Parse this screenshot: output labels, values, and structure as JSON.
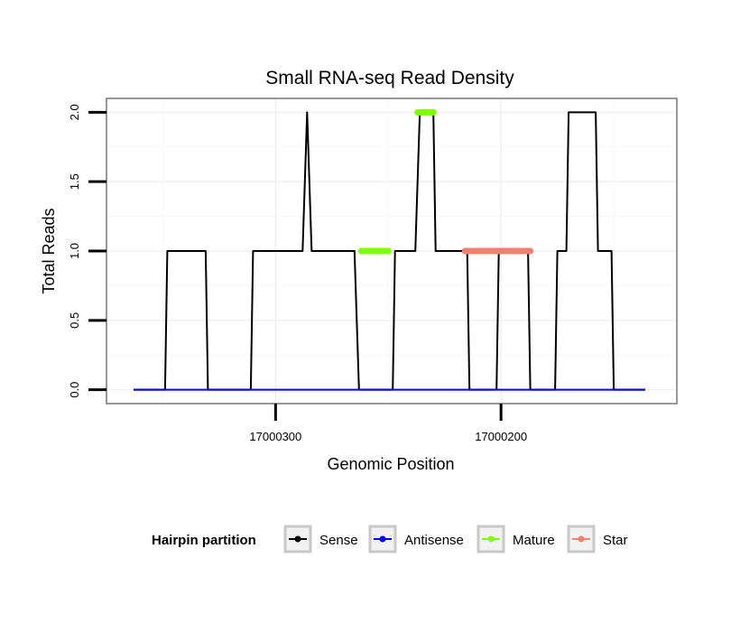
{
  "chart_data": {
    "type": "line",
    "title": "Small RNA-seq Read Density",
    "xlabel": "Genomic Position",
    "ylabel": "Total Reads",
    "xlim": [
      17000375,
      17000122
    ],
    "ylim": [
      -0.1,
      2.1
    ],
    "x_reversed": true,
    "grid": true,
    "x_ticks": [
      {
        "value": 17000300,
        "label": "17000300"
      },
      {
        "value": 17000200,
        "label": "17000200"
      }
    ],
    "y_ticks": [
      {
        "value": 0.0,
        "label": "0.0"
      },
      {
        "value": 0.5,
        "label": "0.5"
      },
      {
        "value": 1.0,
        "label": "1.0"
      },
      {
        "value": 1.5,
        "label": "1.5"
      },
      {
        "value": 2.0,
        "label": "2.0"
      }
    ],
    "series": [
      {
        "name": "Sense",
        "color": "#000000",
        "x": [
          17000363,
          17000349,
          17000348,
          17000331,
          17000330,
          17000311,
          17000310,
          17000288,
          17000287,
          17000286,
          17000285,
          17000284,
          17000265,
          17000264,
          17000263,
          17000261,
          17000248,
          17000247,
          17000246,
          17000238,
          17000237,
          17000236,
          17000235,
          17000230,
          17000229,
          17000215,
          17000214,
          17000202,
          17000201,
          17000188,
          17000187,
          17000176,
          17000175,
          17000171,
          17000170,
          17000158,
          17000157,
          17000151,
          17000150,
          17000136
        ],
        "y": [
          0,
          0,
          1,
          1,
          0,
          0,
          1,
          1,
          1.5,
          2,
          1.5,
          1,
          1,
          0.5,
          0,
          0,
          0,
          1,
          1,
          1,
          1.5,
          2,
          2,
          2,
          1,
          1,
          0,
          0,
          1,
          1,
          0,
          0,
          1,
          1,
          2,
          2,
          1,
          1,
          0,
          0
        ]
      },
      {
        "name": "Antisense",
        "color": "#0000ff",
        "x": [
          17000363,
          17000136
        ],
        "y": [
          0,
          0
        ]
      },
      {
        "name": "Mature",
        "color": "#7fff00",
        "segments": [
          {
            "x": [
              17000262,
              17000250
            ],
            "y": [
              1,
              1
            ]
          },
          {
            "x": [
              17000237,
              17000230
            ],
            "y": [
              2,
              2
            ]
          }
        ]
      },
      {
        "name": "Star",
        "color": "#f08070",
        "segments": [
          {
            "x": [
              17000216,
              17000187
            ],
            "y": [
              1,
              1
            ]
          }
        ]
      }
    ],
    "legend": {
      "title": "Hairpin partition",
      "position": "bottom",
      "items": [
        {
          "label": "Sense",
          "color": "#000000"
        },
        {
          "label": "Antisense",
          "color": "#0000ff"
        },
        {
          "label": "Mature",
          "color": "#7fff00"
        },
        {
          "label": "Star",
          "color": "#f08070"
        }
      ]
    }
  }
}
